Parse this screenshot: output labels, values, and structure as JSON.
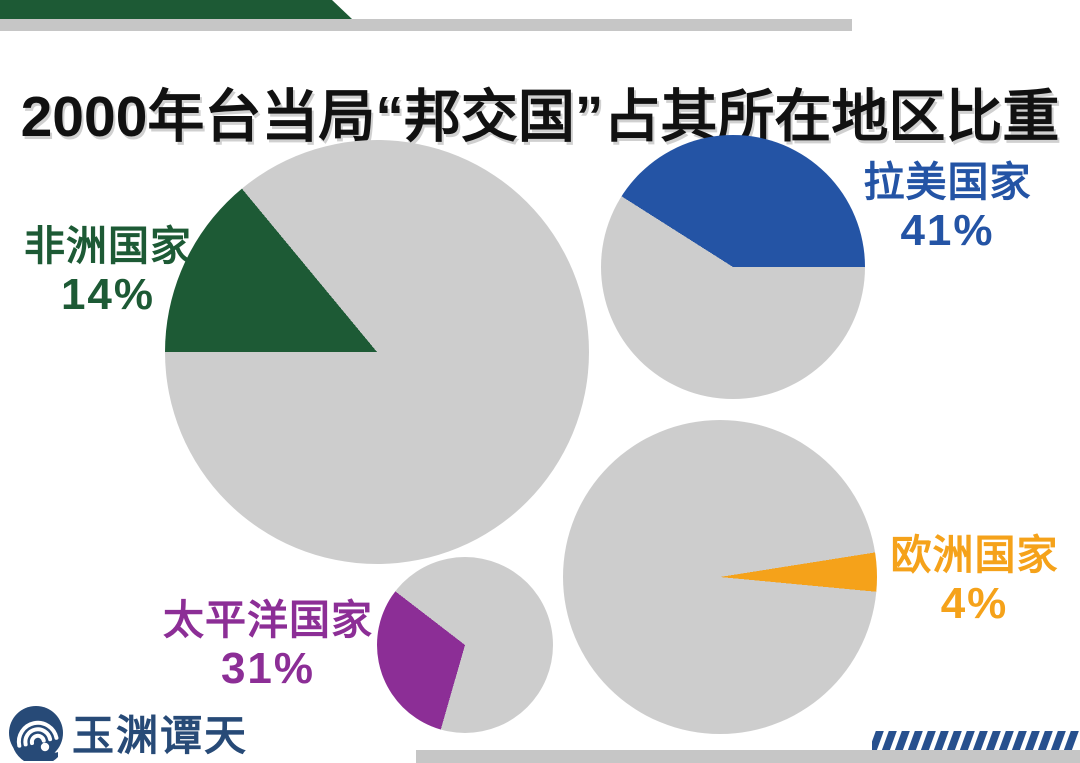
{
  "title": "2000年台当局“邦交国”占其所在地区比重",
  "chart_data": {
    "type": "pie",
    "title": "2000年台当局“邦交国”占其所在地区比重",
    "unit": "%",
    "layout": "four separate pie charts, colored slice = share, gray = remainder",
    "remainder_color": "#cdcdcd",
    "pies": [
      {
        "label": "非洲国家",
        "value": 14,
        "value_label": "14%",
        "color": "#1d5a35",
        "start_conic_deg": 270,
        "legend_position": "left"
      },
      {
        "label": "拉美国家",
        "value": 41,
        "value_label": "41%",
        "color": "#2454a5",
        "start_conic_deg": 302.4,
        "legend_position": "right"
      },
      {
        "label": "太平洋国家",
        "value": 31,
        "value_label": "31%",
        "color": "#8c2e96",
        "start_conic_deg": 196,
        "legend_position": "left"
      },
      {
        "label": "欧洲国家",
        "value": 4,
        "value_label": "4%",
        "color": "#f5a21a",
        "start_conic_deg": 81,
        "legend_position": "right"
      }
    ]
  },
  "logo": {
    "text": "玉渊谭天"
  },
  "decor": {
    "header_green_bar_color": "#1d5a35",
    "header_gray_bar_color": "#c6c6c6",
    "footer_gray_bar_color": "#c6c6c6",
    "hatch_stripe_color": "#27508e",
    "hatch_stripe_count": 16,
    "title_color": "#111111",
    "background_color": "#ffffff"
  }
}
